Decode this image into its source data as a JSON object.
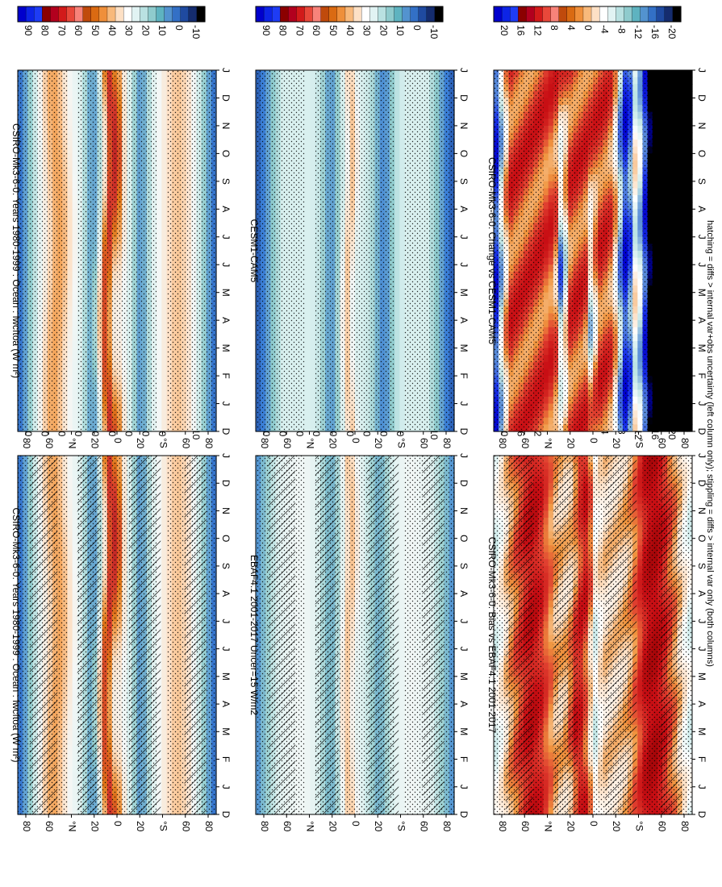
{
  "footnote": "hatching = diffs > internal var+obs uncertainty (left column only); stippling = diffs > internal var only (both columns)",
  "panels": [
    {
      "id": "p1",
      "title": "CSIRO-Mk3-6-0: Years 1980-1999 : Ocean : lwcftoa (W m²)",
      "kind": "clim",
      "hatch": true,
      "stipple": true,
      "colorbar": "clim"
    },
    {
      "id": "p2",
      "title": "CSIRO-Mk3-6-0: Years 1980-1999 : Ocean : lwcftoa (W m²)",
      "kind": "clim",
      "hatch": false,
      "stipple": true,
      "colorbar": "clim"
    },
    {
      "id": "p3",
      "title": "EBAF4.1 2001-2017 Uncer=15 W/m2",
      "kind": "obs",
      "hatch": true,
      "stipple": true,
      "colorbar": "clim"
    },
    {
      "id": "p4",
      "title": "CESM1-CAM5",
      "kind": "cesm",
      "hatch": false,
      "stipple": true,
      "colorbar": "clim"
    },
    {
      "id": "p5",
      "title": "CSIRO-Mk3-6-0: Bias vs EBAF4.1 2001-2017",
      "kind": "bias",
      "hatch": true,
      "stipple": true,
      "colorbar": "diff"
    },
    {
      "id": "p6",
      "title": "CSIRO-Mk3-6-0: Change vs CESM1-CAM5",
      "kind": "change",
      "hatch": false,
      "stipple": true,
      "colorbar": "diff"
    }
  ],
  "chart_data": {
    "type": "heatmap",
    "x_axis": {
      "label": "",
      "ticks": [
        "D",
        "J",
        "F",
        "M",
        "A",
        "M",
        "J",
        "J",
        "A",
        "S",
        "O",
        "N",
        "D",
        "J"
      ]
    },
    "y_axis": {
      "label": "",
      "ticks": [
        "80",
        "60",
        "°N",
        "20",
        "0",
        "20",
        "°S",
        "60",
        "80"
      ],
      "range": [
        -90,
        90
      ]
    },
    "colorbars": {
      "clim": {
        "labels": [
          "90",
          "80",
          "70",
          "60",
          "50",
          "40",
          "30",
          "20",
          "10",
          "0",
          "-10"
        ],
        "colors": [
          "#0000cd",
          "#0d24e6",
          "#1e3cf5",
          "#8b0000",
          "#b2001e",
          "#d21a1a",
          "#e8483a",
          "#f7837a",
          "#c04a0c",
          "#da6a12",
          "#ef8f3a",
          "#f8b97b",
          "#fde0c5",
          "#ffffff",
          "#e1f3f3",
          "#b9e1e1",
          "#8fcbcd",
          "#5eb3c0",
          "#5393cf",
          "#3370c6",
          "#1f4aa0",
          "#152c6e",
          "#000000"
        ]
      },
      "diff": {
        "labels": [
          "20",
          "16",
          "12",
          "8",
          "4",
          "0",
          "-4",
          "-8",
          "-12",
          "-16",
          "-20"
        ],
        "colors": [
          "#0000cd",
          "#0d24e6",
          "#1e3cf5",
          "#8b0000",
          "#b2001e",
          "#d21a1a",
          "#e8483a",
          "#f7837a",
          "#c04a0c",
          "#da6a12",
          "#ef8f3a",
          "#f8b97b",
          "#fde0c5",
          "#ffffff",
          "#e1f3f3",
          "#b9e1e1",
          "#8fcbcd",
          "#5eb3c0",
          "#5393cf",
          "#3370c6",
          "#1f4aa0",
          "#152c6e",
          "#000000"
        ]
      }
    }
  }
}
